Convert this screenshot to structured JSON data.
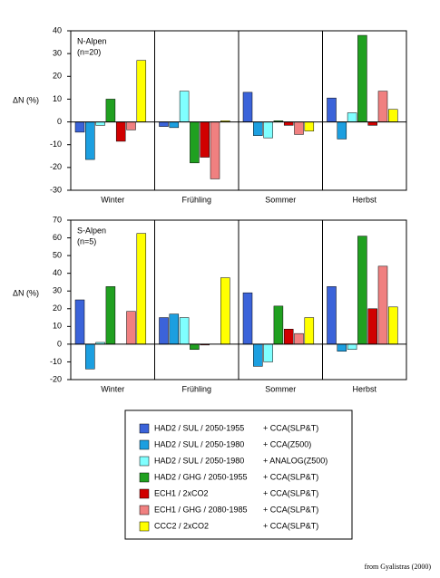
{
  "chart_data": [
    {
      "type": "bar",
      "annotation": [
        "N-Alpen",
        "(n=20)"
      ],
      "ylabel": "ΔN (%)",
      "categories": [
        "Winter",
        "Frühling",
        "Sommer",
        "Herbst"
      ],
      "ylim": [
        -30,
        40
      ],
      "yticks": [
        -30,
        -20,
        -10,
        0,
        10,
        20,
        30,
        40
      ],
      "series": [
        {
          "name": "HAD2 / SUL / 2050-1955",
          "method": "+ CCA(SLP&T)",
          "color": "#3b63d9",
          "values": [
            -4.5,
            -2,
            13,
            10.5
          ]
        },
        {
          "name": "HAD2 / SUL / 2050-1980",
          "method": "+ CCA(Z500)",
          "color": "#1c9fe0",
          "values": [
            -16.5,
            -2.5,
            -6,
            -7.5
          ]
        },
        {
          "name": "HAD2 / SUL / 2050-1980",
          "method": "+ ANALOG(Z500)",
          "color": "#80ffff",
          "values": [
            -1.5,
            13.5,
            -7,
            4
          ]
        },
        {
          "name": "HAD2 / GHG / 2050-1955",
          "method": "+ CCA(SLP&T)",
          "color": "#20a020",
          "values": [
            10,
            -18,
            0.5,
            38
          ]
        },
        {
          "name": "ECH1 / 2xCO2",
          "method": "+ CCA(SLP&T)",
          "color": "#d00000",
          "values": [
            -8.5,
            -15.5,
            -1.5,
            -1.5
          ]
        },
        {
          "name": "ECH1 / GHG / 2080-1985",
          "method": "+ CCA(SLP&T)",
          "color": "#f08080",
          "values": [
            -3.5,
            -25,
            -5.5,
            13.5
          ]
        },
        {
          "name": "CCC2 / 2xCO2",
          "method": "+ CCA(SLP&T)",
          "color": "#ffff00",
          "values": [
            27,
            0.5,
            -4,
            5.5
          ]
        }
      ]
    },
    {
      "type": "bar",
      "annotation": [
        "S-Alpen",
        "(n=5)"
      ],
      "ylabel": "ΔN (%)",
      "categories": [
        "Winter",
        "Frühling",
        "Sommer",
        "Herbst"
      ],
      "ylim": [
        -20,
        70
      ],
      "yticks": [
        -20,
        -10,
        0,
        10,
        20,
        30,
        40,
        50,
        60,
        70
      ],
      "series": [
        {
          "color": "#3b63d9",
          "values": [
            25,
            15,
            29,
            32.5
          ]
        },
        {
          "color": "#1c9fe0",
          "values": [
            -14,
            17,
            -12.5,
            -4
          ]
        },
        {
          "color": "#80ffff",
          "values": [
            1,
            15,
            -10,
            -3
          ]
        },
        {
          "color": "#20a020",
          "values": [
            32.5,
            -3,
            21.5,
            61
          ]
        },
        {
          "color": "#d00000",
          "values": [
            0,
            -0.5,
            8.5,
            20
          ]
        },
        {
          "color": "#f08080",
          "values": [
            18.5,
            0,
            6,
            44
          ]
        },
        {
          "color": "#ffff00",
          "values": [
            62.5,
            37.5,
            15,
            21
          ]
        }
      ]
    }
  ],
  "footnote": "from Gyalistras (2000)"
}
